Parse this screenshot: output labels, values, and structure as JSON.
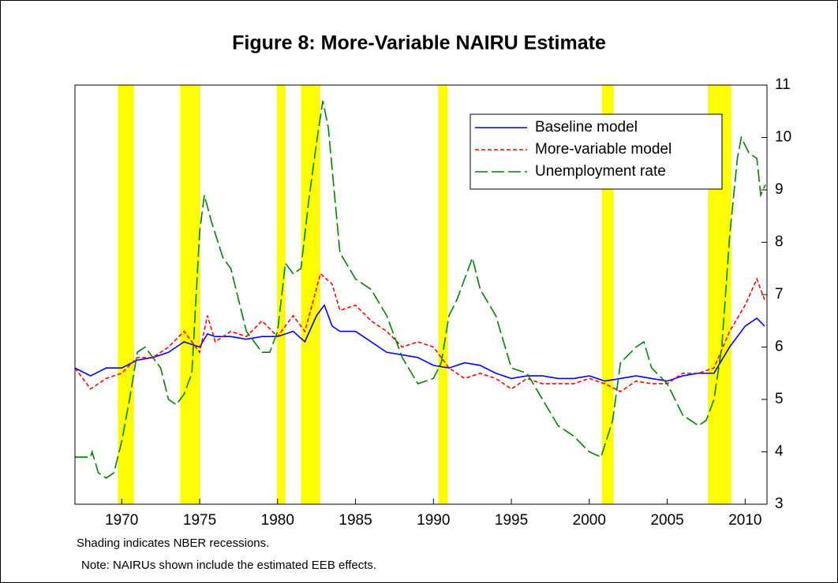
{
  "chart_data": {
    "type": "line",
    "title": "Figure 8:  More-Variable NAIRU Estimate",
    "notes": [
      "Shading indicates NBER recessions.",
      "Note:  NAIRUs shown include the estimated EEB effects."
    ],
    "xlim": [
      1967,
      2011.4
    ],
    "xticks": [
      1970,
      1975,
      1980,
      1985,
      1990,
      1995,
      2000,
      2005,
      2010
    ],
    "ylim": [
      3,
      11
    ],
    "yticks": [
      3,
      4,
      5,
      6,
      7,
      8,
      9,
      10,
      11
    ],
    "recession_color": "#ffff00",
    "recessions": [
      [
        1969.75,
        1970.8
      ],
      [
        1973.75,
        1975.05
      ],
      [
        1979.95,
        1980.5
      ],
      [
        1981.5,
        1982.75
      ],
      [
        1990.3,
        1990.9
      ],
      [
        2000.8,
        2001.55
      ],
      [
        2007.6,
        2009.1
      ]
    ],
    "legend": "top-right",
    "series": [
      {
        "name": "Baseline model",
        "color": "#0000ff",
        "dash": "solid",
        "x": [
          1967,
          1968,
          1969,
          1970,
          1971,
          1972,
          1973,
          1974,
          1975,
          1975.5,
          1976,
          1977,
          1978,
          1979,
          1980,
          1981,
          1981.75,
          1982.5,
          1983,
          1983.5,
          1984,
          1985,
          1986,
          1987,
          1988,
          1989,
          1990,
          1991,
          1992,
          1993,
          1994,
          1995,
          1996,
          1997,
          1998,
          1999,
          2000,
          2001,
          2002,
          2003,
          2004,
          2005,
          2006,
          2007,
          2008,
          2009,
          2010,
          2010.75,
          2011.25
        ],
        "values": [
          5.6,
          5.45,
          5.6,
          5.6,
          5.75,
          5.8,
          5.9,
          6.1,
          6.0,
          6.25,
          6.2,
          6.2,
          6.15,
          6.2,
          6.2,
          6.3,
          6.1,
          6.6,
          6.8,
          6.4,
          6.3,
          6.3,
          6.1,
          5.9,
          5.85,
          5.8,
          5.65,
          5.6,
          5.7,
          5.65,
          5.5,
          5.4,
          5.45,
          5.45,
          5.4,
          5.4,
          5.45,
          5.35,
          5.4,
          5.45,
          5.4,
          5.35,
          5.45,
          5.5,
          5.5,
          6.0,
          6.4,
          6.55,
          6.4
        ]
      },
      {
        "name": "More-variable model",
        "color": "#ff0000",
        "dash": "short",
        "x": [
          1967,
          1968,
          1969,
          1970,
          1971,
          1972,
          1973,
          1974,
          1975,
          1975.5,
          1976,
          1977,
          1978,
          1979,
          1980,
          1981,
          1981.75,
          1982.75,
          1983.5,
          1984,
          1985,
          1986,
          1987,
          1988,
          1989,
          1990,
          1991,
          1992,
          1993,
          1994,
          1995,
          1996,
          1997,
          1998,
          1999,
          2000,
          2001,
          2002,
          2003,
          2004,
          2005,
          2006,
          2007,
          2008,
          2009,
          2010,
          2010.75,
          2011.25
        ],
        "values": [
          5.6,
          5.2,
          5.4,
          5.5,
          5.8,
          5.8,
          6.0,
          6.3,
          5.9,
          6.6,
          6.1,
          6.3,
          6.2,
          6.5,
          6.2,
          6.6,
          6.3,
          7.4,
          7.2,
          6.7,
          6.8,
          6.5,
          6.3,
          6.0,
          6.1,
          6.0,
          5.6,
          5.4,
          5.5,
          5.4,
          5.2,
          5.4,
          5.3,
          5.3,
          5.3,
          5.4,
          5.3,
          5.15,
          5.35,
          5.3,
          5.3,
          5.5,
          5.5,
          5.6,
          6.3,
          6.8,
          7.3,
          6.9
        ]
      },
      {
        "name": "Unemployment rate",
        "color": "#008000",
        "dash": "long",
        "x": [
          1967,
          1968,
          1968.1,
          1968.5,
          1969,
          1969.5,
          1970,
          1970.5,
          1971,
          1971.5,
          1972,
          1972.5,
          1973,
          1973.5,
          1974,
          1974.5,
          1975,
          1975.3,
          1975.75,
          1976.5,
          1977,
          1978,
          1979,
          1979.5,
          1980,
          1980.5,
          1981,
          1981.5,
          1982,
          1982.5,
          1982.9,
          1983.25,
          1984,
          1985,
          1986,
          1987,
          1988,
          1989,
          1990,
          1990.5,
          1991,
          1991.5,
          1992.5,
          1993,
          1994,
          1995,
          1996,
          1997,
          1998,
          1999,
          2000,
          2000.75,
          2001.5,
          2002,
          2003,
          2003.5,
          2004,
          2005,
          2006,
          2006.5,
          2007,
          2007.5,
          2008,
          2008.5,
          2009,
          2009.5,
          2009.75,
          2010.25,
          2010.75,
          2011,
          2011.3
        ],
        "values": [
          3.9,
          3.9,
          4.0,
          3.6,
          3.5,
          3.6,
          4.2,
          5.0,
          5.9,
          6.0,
          5.8,
          5.6,
          5.0,
          4.9,
          5.1,
          5.5,
          8.2,
          8.9,
          8.4,
          7.7,
          7.5,
          6.3,
          5.9,
          5.9,
          6.3,
          7.6,
          7.4,
          7.5,
          8.8,
          9.9,
          10.7,
          10.2,
          7.8,
          7.3,
          7.1,
          6.6,
          5.8,
          5.3,
          5.4,
          5.7,
          6.6,
          6.9,
          7.7,
          7.1,
          6.6,
          5.6,
          5.5,
          5.0,
          4.5,
          4.3,
          4.0,
          3.9,
          4.6,
          5.7,
          6.0,
          6.1,
          5.6,
          5.3,
          4.7,
          4.6,
          4.5,
          4.6,
          5.0,
          6.0,
          8.1,
          9.6,
          10.0,
          9.7,
          9.6,
          8.9,
          9.1
        ]
      }
    ]
  }
}
